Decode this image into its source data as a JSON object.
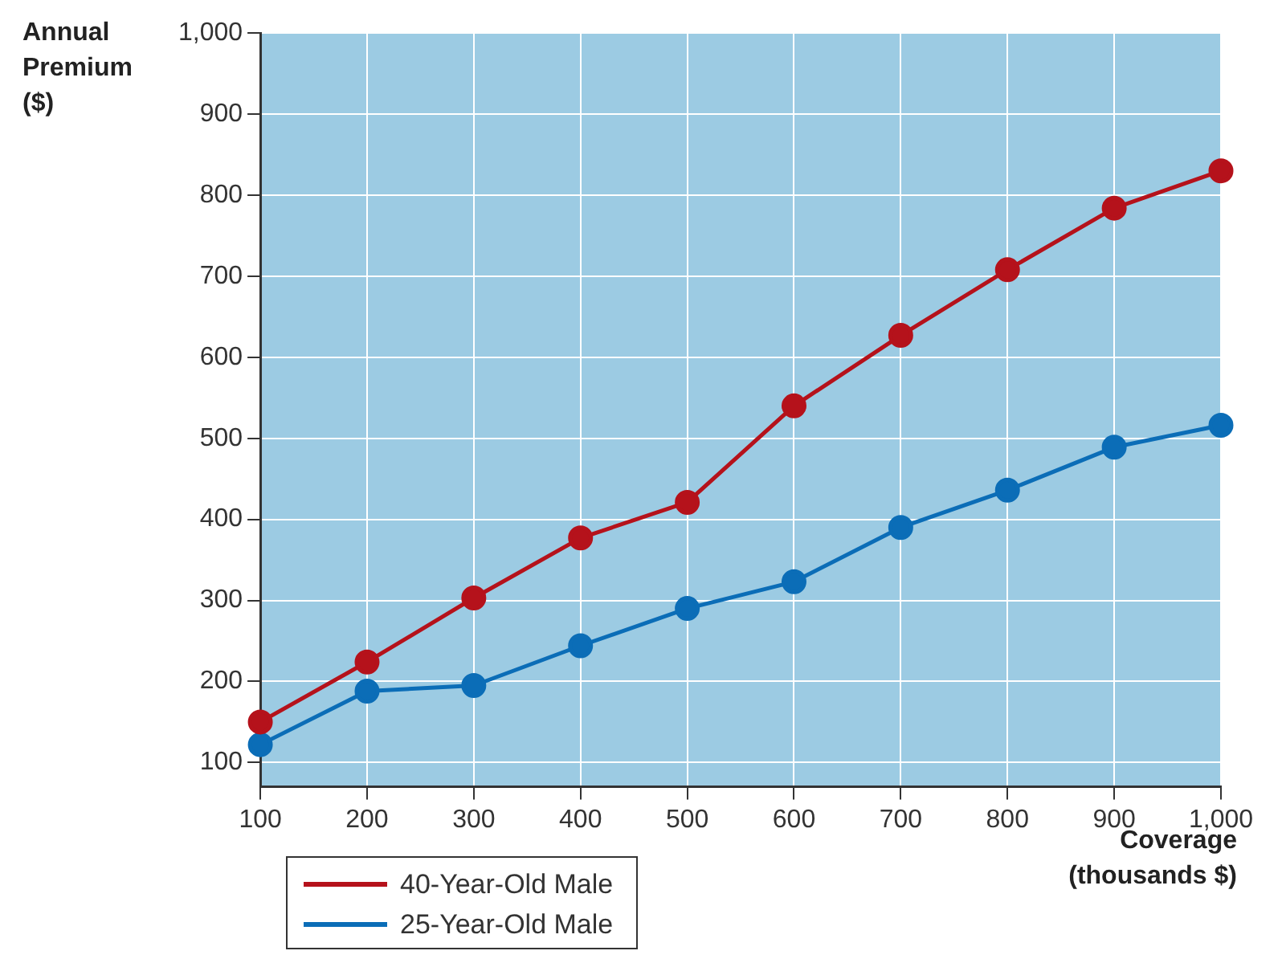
{
  "chart_data": {
    "type": "line",
    "xlabel": "Coverage (thousands $)",
    "ylabel": "Annual Premium ($)",
    "x": [
      100,
      200,
      300,
      400,
      500,
      600,
      700,
      800,
      900,
      1000
    ],
    "series": [
      {
        "name": "40-Year-Old Male",
        "color": "#b5121b",
        "values": [
          150,
          224,
          303,
          377,
          421,
          540,
          627,
          708,
          784,
          830
        ]
      },
      {
        "name": "25-Year-Old Male",
        "color": "#0b6db7",
        "values": [
          122,
          188,
          195,
          244,
          290,
          323,
          390,
          436,
          489,
          516
        ]
      }
    ],
    "xlim": [
      100,
      1000
    ],
    "xticks": [
      100,
      200,
      300,
      400,
      500,
      600,
      700,
      800,
      900,
      {
        "value": 1000,
        "label": "1,000"
      }
    ],
    "ylim": [
      70,
      1000
    ],
    "yticks": [
      100,
      200,
      300,
      400,
      500,
      600,
      700,
      800,
      900,
      {
        "value": 1000,
        "label": "1,000"
      }
    ],
    "grid": true,
    "legend": "bottom left",
    "marker": "circle",
    "line_style": "solid"
  }
}
